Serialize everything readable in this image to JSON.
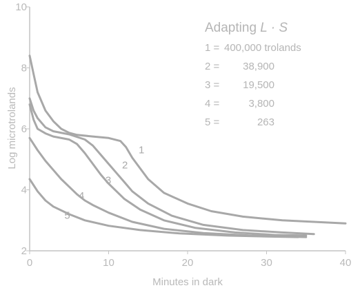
{
  "chart_data": {
    "type": "line",
    "xlabel": "Minutes in dark",
    "ylabel": "Log microtrolands",
    "xlim": [
      0,
      40
    ],
    "ylim": [
      2,
      10
    ],
    "xticks": [
      0,
      10,
      20,
      30,
      40
    ],
    "yticks": [
      2,
      4,
      6,
      8,
      10
    ],
    "grid": false,
    "legend": {
      "placement": "top-right",
      "title_prefix": "Adapting ",
      "title_var": "L · S",
      "entries": [
        {
          "key": "1 =",
          "value": "400,000 trolands"
        },
        {
          "key": "2 =",
          "value": "38,900"
        },
        {
          "key": "3 =",
          "value": "19,500"
        },
        {
          "key": "4 =",
          "value": "3,800"
        },
        {
          "key": "5 =",
          "value": "263"
        }
      ]
    },
    "series": [
      {
        "name": "1",
        "label_at": [
          13.8,
          5.2
        ],
        "points": [
          [
            0,
            8.4
          ],
          [
            0.5,
            7.8
          ],
          [
            1,
            7.2
          ],
          [
            2,
            6.6
          ],
          [
            3,
            6.25
          ],
          [
            4,
            6.0
          ],
          [
            5,
            5.87
          ],
          [
            6,
            5.8
          ],
          [
            8,
            5.75
          ],
          [
            10,
            5.7
          ],
          [
            11.5,
            5.6
          ],
          [
            12.2,
            5.4
          ],
          [
            13,
            5.05
          ],
          [
            14,
            4.7
          ],
          [
            15,
            4.35
          ],
          [
            17,
            3.9
          ],
          [
            20,
            3.55
          ],
          [
            23,
            3.3
          ],
          [
            27,
            3.12
          ],
          [
            32,
            3.0
          ],
          [
            36,
            2.95
          ],
          [
            40,
            2.9
          ]
        ]
      },
      {
        "name": "2",
        "label_at": [
          11.7,
          4.7
        ],
        "points": [
          [
            0,
            7.0
          ],
          [
            0.5,
            6.6
          ],
          [
            1,
            6.35
          ],
          [
            2,
            6.05
          ],
          [
            3,
            5.92
          ],
          [
            5,
            5.82
          ],
          [
            7,
            5.65
          ],
          [
            8,
            5.45
          ],
          [
            9,
            5.15
          ],
          [
            10,
            4.85
          ],
          [
            11,
            4.55
          ],
          [
            12,
            4.25
          ],
          [
            13,
            3.95
          ],
          [
            15,
            3.55
          ],
          [
            18,
            3.15
          ],
          [
            22,
            2.85
          ],
          [
            27,
            2.68
          ],
          [
            32,
            2.6
          ],
          [
            36,
            2.55
          ]
        ]
      },
      {
        "name": "3",
        "label_at": [
          9.6,
          4.2
        ],
        "points": [
          [
            0,
            6.8
          ],
          [
            0.5,
            6.3
          ],
          [
            1,
            6.0
          ],
          [
            2,
            5.85
          ],
          [
            3,
            5.75
          ],
          [
            5,
            5.65
          ],
          [
            6,
            5.5
          ],
          [
            7,
            5.2
          ],
          [
            8,
            4.85
          ],
          [
            9,
            4.5
          ],
          [
            10,
            4.2
          ],
          [
            12,
            3.7
          ],
          [
            14,
            3.35
          ],
          [
            17,
            3.0
          ],
          [
            21,
            2.75
          ],
          [
            26,
            2.6
          ],
          [
            31,
            2.52
          ],
          [
            35,
            2.5
          ]
        ]
      },
      {
        "name": "4",
        "label_at": [
          6.2,
          3.7
        ],
        "points": [
          [
            0,
            5.7
          ],
          [
            1,
            5.3
          ],
          [
            2,
            4.95
          ],
          [
            3,
            4.65
          ],
          [
            4,
            4.35
          ],
          [
            5,
            4.1
          ],
          [
            6,
            3.85
          ],
          [
            7,
            3.65
          ],
          [
            8,
            3.5
          ],
          [
            10,
            3.25
          ],
          [
            13,
            2.95
          ],
          [
            17,
            2.72
          ],
          [
            22,
            2.58
          ],
          [
            28,
            2.5
          ],
          [
            35,
            2.45
          ]
        ]
      },
      {
        "name": "5",
        "label_at": [
          4.4,
          3.05
        ],
        "points": [
          [
            0,
            4.35
          ],
          [
            1,
            3.95
          ],
          [
            2,
            3.65
          ],
          [
            3,
            3.45
          ],
          [
            5,
            3.2
          ],
          [
            7,
            3.0
          ],
          [
            10,
            2.82
          ],
          [
            14,
            2.68
          ],
          [
            19,
            2.57
          ],
          [
            25,
            2.5
          ],
          [
            30,
            2.47
          ],
          [
            34,
            2.45
          ]
        ]
      }
    ]
  }
}
